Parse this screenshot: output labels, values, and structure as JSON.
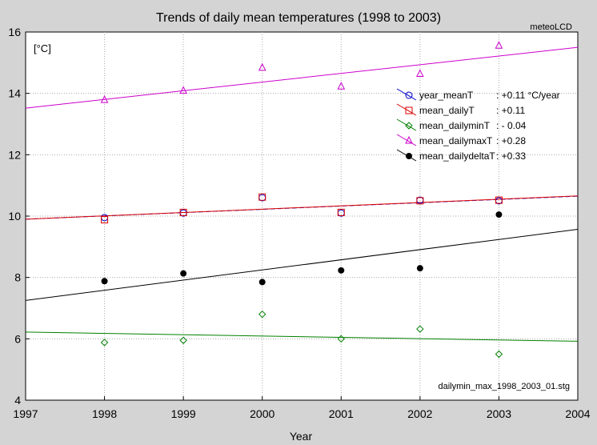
{
  "chart_data": {
    "type": "scatter",
    "title": "Trends of daily mean temperatures (1998 to 2003)",
    "corner_note": "meteoLCD",
    "unit_label": "[°C]",
    "source_label": "dailymin_max_1998_2003_01.stg",
    "xlabel": "Year",
    "ylabel": "",
    "xlim": [
      1997,
      2004
    ],
    "ylim": [
      4,
      16
    ],
    "x_ticks": [
      1997,
      1998,
      1999,
      2000,
      2001,
      2002,
      2003,
      2004
    ],
    "y_ticks": [
      4,
      6,
      8,
      10,
      12,
      14,
      16
    ],
    "grid": true,
    "legend_position": "top-right",
    "x": [
      1998,
      1999,
      2000,
      2001,
      2002,
      2003
    ],
    "series": [
      {
        "name": "year_meanT",
        "trend_label": ": +0.11 °C/year",
        "marker": "circle",
        "color": "#0000cc",
        "values": [
          9.95,
          10.1,
          10.6,
          10.1,
          10.52,
          10.5
        ],
        "trend": [
          [
            1997,
            9.9
          ],
          [
            2004,
            10.65
          ]
        ]
      },
      {
        "name": "mean_dailyT",
        "trend_label": ": +0.11",
        "marker": "square",
        "color": "#dd0000",
        "values": [
          9.88,
          10.12,
          10.62,
          10.12,
          10.5,
          10.52
        ],
        "trend": [
          [
            1997,
            9.9
          ],
          [
            2004,
            10.66
          ]
        ]
      },
      {
        "name": "mean_dailyminT",
        "trend_label": ": - 0.04",
        "marker": "diamond",
        "color": "#008000",
        "values": [
          5.88,
          5.95,
          6.8,
          6.0,
          6.32,
          5.5
        ],
        "trend": [
          [
            1997,
            6.22
          ],
          [
            2004,
            5.92
          ]
        ]
      },
      {
        "name": "mean_dailymaxT",
        "trend_label": ": +0.28",
        "marker": "triangle",
        "color": "#cc00cc",
        "values": [
          13.78,
          14.08,
          14.83,
          14.22,
          14.63,
          15.55
        ],
        "trend": [
          [
            1997,
            13.52
          ],
          [
            2004,
            15.5
          ]
        ]
      },
      {
        "name": "mean_dailydeltaT",
        "trend_label": ": +0.33",
        "marker": "dot",
        "color": "#000000",
        "values": [
          7.88,
          8.13,
          7.85,
          8.23,
          8.3,
          10.05
        ],
        "trend": [
          [
            1997,
            7.25
          ],
          [
            2004,
            9.57
          ]
        ]
      }
    ]
  }
}
